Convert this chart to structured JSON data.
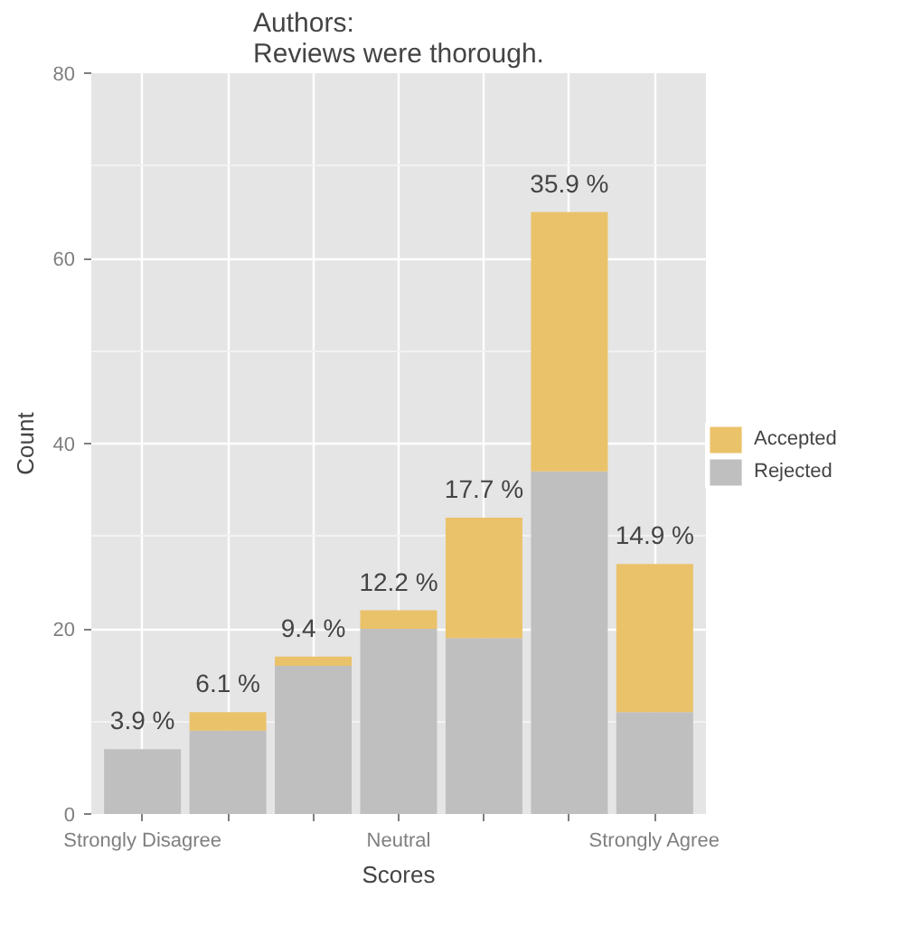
{
  "chart_data": {
    "type": "bar",
    "title": "Authors:\nReviews were thorough.",
    "xlabel": "Scores",
    "ylabel": "Count",
    "categories": [
      "Strongly Disagree",
      null,
      null,
      "Neutral",
      null,
      null,
      "Strongly Agree"
    ],
    "stacked": true,
    "series": [
      {
        "name": "Rejected",
        "color": "#bfbfbf",
        "values": [
          7,
          9,
          16,
          20,
          19,
          37,
          11
        ]
      },
      {
        "name": "Accepted",
        "color": "#eac26a",
        "values": [
          0,
          2,
          1,
          2,
          13,
          28,
          16
        ]
      }
    ],
    "annotations": [
      {
        "text": "3.9 %",
        "x": "Strongly Disagree",
        "y": 7
      },
      {
        "text": "6.1 %",
        "y": 11
      },
      {
        "text": "9.4 %",
        "y": 17
      },
      {
        "text": "12.2 %",
        "x": "Neutral",
        "y": 22
      },
      {
        "text": "17.7 %",
        "y": 32
      },
      {
        "text": "35.9 %",
        "y": 65
      },
      {
        "text": "14.9 %",
        "x": "Strongly Agree",
        "y": 27
      }
    ],
    "ylim": [
      0,
      80
    ],
    "yticks": [
      0,
      20,
      40,
      60,
      80
    ],
    "grid": true,
    "legend": "right"
  }
}
